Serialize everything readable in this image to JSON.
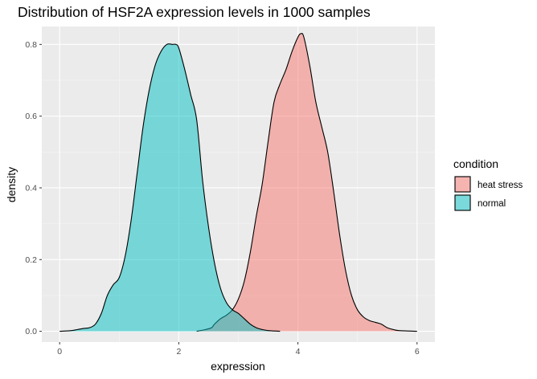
{
  "chart_data": {
    "type": "area",
    "title": "Distribution of HSF2A expression levels in 1000 samples",
    "xlabel": "expression",
    "ylabel": "density",
    "xlim": [
      -0.3,
      6.3
    ],
    "ylim": [
      -0.03,
      0.85
    ],
    "x_ticks": [
      0,
      2,
      4,
      6
    ],
    "x_tick_labels": [
      "0",
      "2",
      "4",
      "6"
    ],
    "y_ticks": [
      0.0,
      0.2,
      0.4,
      0.6,
      0.8
    ],
    "y_tick_labels": [
      "0.0",
      "0.2",
      "0.4",
      "0.6",
      "0.8"
    ],
    "grid": true,
    "legend": {
      "title": "condition",
      "position": "right",
      "entries": [
        {
          "label": "heat stress",
          "color": "#F8766D"
        },
        {
          "label": "normal",
          "color": "#00BFC4"
        }
      ]
    },
    "series": [
      {
        "name": "heat stress",
        "color": "#F8766D",
        "x": [
          2.3,
          2.45,
          2.55,
          2.6,
          2.7,
          2.8,
          2.9,
          3.0,
          3.1,
          3.2,
          3.3,
          3.4,
          3.5,
          3.6,
          3.7,
          3.8,
          3.9,
          4.0,
          4.05,
          4.1,
          4.2,
          4.3,
          4.4,
          4.5,
          4.6,
          4.7,
          4.8,
          4.9,
          5.0,
          5.1,
          5.2,
          5.3,
          5.4,
          5.5,
          5.6,
          5.7,
          6.0
        ],
        "values": [
          0.0,
          0.005,
          0.01,
          0.02,
          0.035,
          0.045,
          0.06,
          0.09,
          0.14,
          0.22,
          0.32,
          0.41,
          0.53,
          0.64,
          0.69,
          0.73,
          0.78,
          0.82,
          0.83,
          0.82,
          0.74,
          0.64,
          0.57,
          0.5,
          0.39,
          0.27,
          0.17,
          0.1,
          0.06,
          0.04,
          0.03,
          0.025,
          0.02,
          0.01,
          0.005,
          0.002,
          0.0
        ]
      },
      {
        "name": "normal",
        "color": "#00BFC4",
        "x": [
          0.0,
          0.2,
          0.3,
          0.4,
          0.5,
          0.6,
          0.7,
          0.8,
          0.9,
          1.0,
          1.1,
          1.2,
          1.3,
          1.4,
          1.5,
          1.6,
          1.7,
          1.8,
          1.9,
          1.95,
          2.0,
          2.1,
          2.2,
          2.3,
          2.4,
          2.5,
          2.6,
          2.7,
          2.8,
          2.9,
          3.0,
          3.1,
          3.2,
          3.3,
          3.4,
          3.5,
          3.6,
          3.7
        ],
        "values": [
          0.0,
          0.002,
          0.005,
          0.008,
          0.01,
          0.02,
          0.05,
          0.1,
          0.13,
          0.15,
          0.21,
          0.31,
          0.44,
          0.57,
          0.67,
          0.74,
          0.78,
          0.8,
          0.8,
          0.8,
          0.79,
          0.73,
          0.66,
          0.59,
          0.42,
          0.29,
          0.19,
          0.12,
          0.08,
          0.06,
          0.05,
          0.035,
          0.02,
          0.01,
          0.005,
          0.002,
          0.001,
          0.0
        ]
      }
    ]
  }
}
